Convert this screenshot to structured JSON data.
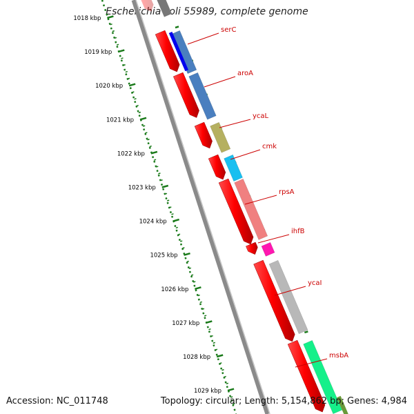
{
  "title": "Escherichia coli 55989, complete genome",
  "accession": "Accession: NC_011748",
  "summary": "Topology: circular; Length: 5,154,862 bp; Genes: 4,984",
  "ruler": {
    "labels": [
      "1018 kbp",
      "1019 kbp",
      "1020 kbp",
      "1021 kbp",
      "1022 kbp",
      "1023 kbp",
      "1024 kbp",
      "1025 kbp",
      "1026 kbp",
      "1027 kbp",
      "1028 kbp",
      "1029 kbp"
    ]
  },
  "genes": [
    {
      "name": "serC",
      "color": "#4a7fbf"
    },
    {
      "name": "aroA",
      "color": "#4a7fbf"
    },
    {
      "name": "ycaL",
      "color": "#b5b060"
    },
    {
      "name": "cmk",
      "color": "#19bff0"
    },
    {
      "name": "rpsA",
      "color": "#f08080"
    },
    {
      "name": "ihfB",
      "color": "#ff17b0"
    },
    {
      "name": "ycaI",
      "color": "#b8b8b8"
    },
    {
      "name": "msbA",
      "color": "#15f08a"
    }
  ],
  "colors": {
    "cds": "#ff0000",
    "backbone": "#8a8a8a",
    "ruler": "#1a7a1a",
    "label": "#cc0000"
  }
}
